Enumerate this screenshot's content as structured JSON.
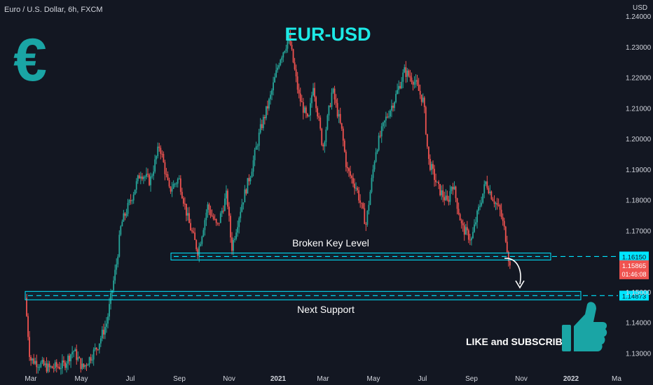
{
  "header": {
    "symbol": "Euro / U.S. Dollar, 6h, FXCM",
    "currency": "USD"
  },
  "title": "EUR-USD",
  "logo": {
    "glyph": "€",
    "color": "#1aa5a5"
  },
  "promo": {
    "text": "LIKE and SUBSCRIBE",
    "icon": "thumbs-up-icon",
    "color": "#1aa5a5"
  },
  "colors": {
    "up": "#26a69a",
    "down": "#ef5350",
    "accent": "#00e5ff",
    "title": "#1de9e6",
    "bg": "#131722"
  },
  "chart_data": {
    "type": "candlestick",
    "y_ticks": [
      "1.24000",
      "1.23000",
      "1.22000",
      "1.21000",
      "1.20000",
      "1.19000",
      "1.18000",
      "1.17000",
      "1.15000",
      "1.14000",
      "1.13000"
    ],
    "ylim": [
      1.125,
      1.24
    ],
    "x_ticks": [
      "Mar",
      "May",
      "Jul",
      "Sep",
      "Nov",
      "2021",
      "Mar",
      "May",
      "Jul",
      "Sep",
      "Nov",
      "2022",
      "Ma"
    ],
    "price_path": [
      [
        0,
        1.148
      ],
      [
        1,
        1.128
      ],
      [
        5,
        1.125
      ],
      [
        8,
        1.126
      ],
      [
        10,
        1.131
      ],
      [
        12,
        1.125
      ],
      [
        15,
        1.132
      ],
      [
        17,
        1.14
      ],
      [
        19,
        1.159
      ],
      [
        20,
        1.172
      ],
      [
        22,
        1.18
      ],
      [
        24,
        1.189
      ],
      [
        26,
        1.186
      ],
      [
        28,
        1.198
      ],
      [
        30,
        1.183
      ],
      [
        32,
        1.187
      ],
      [
        34,
        1.173
      ],
      [
        36,
        1.163
      ],
      [
        38,
        1.178
      ],
      [
        40,
        1.171
      ],
      [
        42,
        1.182
      ],
      [
        43,
        1.164
      ],
      [
        45,
        1.178
      ],
      [
        47,
        1.189
      ],
      [
        49,
        1.203
      ],
      [
        51,
        1.213
      ],
      [
        53,
        1.226
      ],
      [
        55,
        1.233
      ],
      [
        57,
        1.214
      ],
      [
        59,
        1.205
      ],
      [
        60,
        1.218
      ],
      [
        62,
        1.197
      ],
      [
        64,
        1.216
      ],
      [
        66,
        1.202
      ],
      [
        67,
        1.19
      ],
      [
        69,
        1.184
      ],
      [
        71,
        1.172
      ],
      [
        73,
        1.196
      ],
      [
        75,
        1.206
      ],
      [
        77,
        1.213
      ],
      [
        79,
        1.222
      ],
      [
        81,
        1.219
      ],
      [
        83,
        1.212
      ],
      [
        84,
        1.193
      ],
      [
        86,
        1.184
      ],
      [
        88,
        1.179
      ],
      [
        89,
        1.186
      ],
      [
        91,
        1.171
      ],
      [
        93,
        1.167
      ],
      [
        94,
        1.174
      ],
      [
        96,
        1.186
      ],
      [
        97,
        1.182
      ],
      [
        99,
        1.176
      ],
      [
        100,
        1.169
      ],
      [
        101,
        1.158
      ]
    ],
    "levels": [
      {
        "label": "Broken Key Level",
        "price": "1.16150",
        "value": 1.1615
      },
      {
        "label": "Next Support",
        "price": "1.14873",
        "value": 1.14873
      }
    ],
    "last_price": {
      "value": "1.15865",
      "countdown": "01:46:08"
    }
  }
}
